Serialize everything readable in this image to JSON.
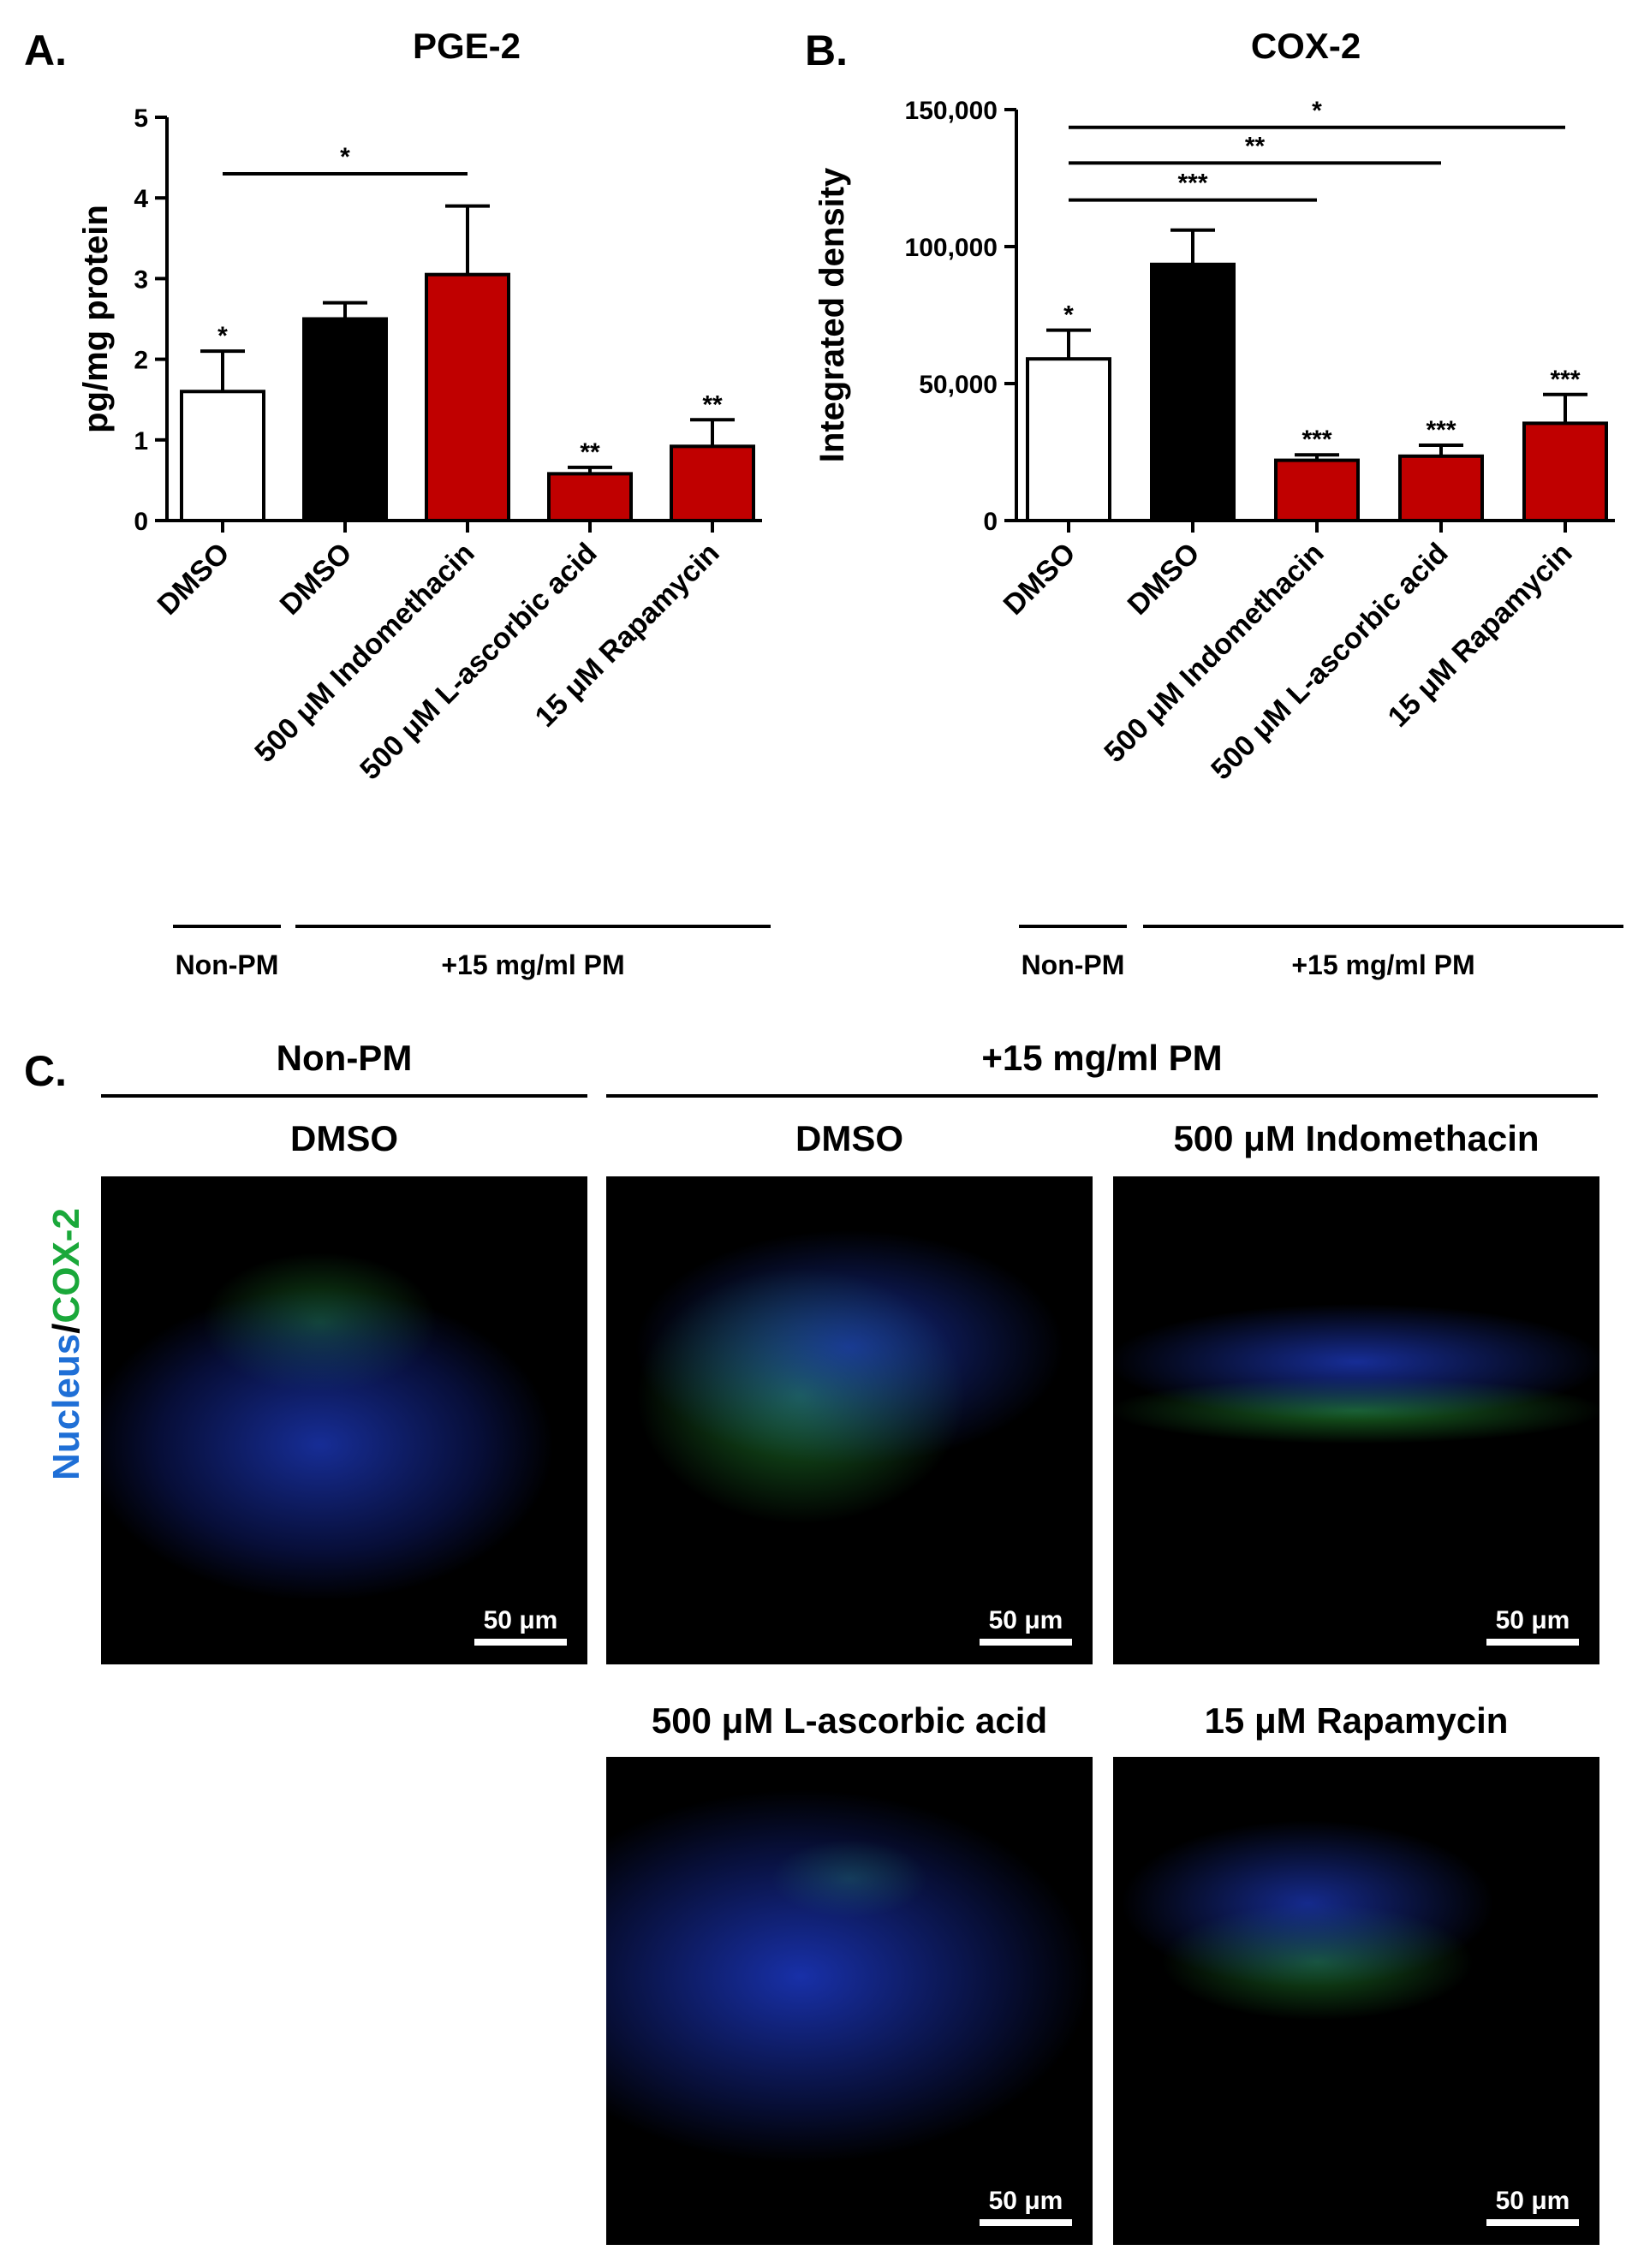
{
  "panels": {
    "a": {
      "letter": "A.",
      "title": "PGE-2"
    },
    "b": {
      "letter": "B.",
      "title": "COX-2"
    },
    "c": {
      "letter": "C."
    }
  },
  "chart_data": [
    {
      "type": "bar",
      "title": "PGE-2",
      "ylabel": "pg/mg protein",
      "xlabel": "",
      "ylim": [
        0,
        5
      ],
      "yticks": [
        "0",
        "1",
        "2",
        "3",
        "4",
        "5"
      ],
      "categories": [
        "DMSO",
        "DMSO",
        "500 μM Indomethacin",
        "500 μM L-ascorbic acid",
        "15 μM Rapamycin"
      ],
      "values": [
        1.6,
        2.5,
        3.05,
        0.58,
        0.92
      ],
      "errors": [
        0.5,
        0.2,
        0.85,
        0.08,
        0.33
      ],
      "bar_colors": [
        "#ffffff",
        "#000000",
        "#c00000",
        "#c00000",
        "#c00000"
      ],
      "bar_marks": [
        "*",
        "",
        "",
        "**",
        "**"
      ],
      "brackets": [
        {
          "from": 0,
          "to": 2,
          "y": 4.3,
          "label": "*"
        }
      ],
      "groups": [
        {
          "label": "Non-PM",
          "from": 0,
          "to": 0
        },
        {
          "label": "+15 mg/ml PM",
          "from": 1,
          "to": 4
        }
      ]
    },
    {
      "type": "bar",
      "title": "COX-2",
      "ylabel": "Integrated density",
      "xlabel": "",
      "ylim": [
        0,
        150000
      ],
      "yticks": [
        "0",
        "50,000",
        "100,000",
        "150,000"
      ],
      "categories": [
        "DMSO",
        "DMSO",
        "500 μM Indomethacin",
        "500 μM L-ascorbic acid",
        "15 μM Rapamycin"
      ],
      "values": [
        59000,
        93500,
        22000,
        23500,
        35500
      ],
      "errors": [
        10500,
        12500,
        2000,
        4000,
        10500
      ],
      "bar_colors": [
        "#ffffff",
        "#000000",
        "#c00000",
        "#c00000",
        "#c00000"
      ],
      "bar_marks": [
        "*",
        "",
        "***",
        "***",
        "***"
      ],
      "brackets": [
        {
          "from": 0,
          "to": 2,
          "y": 117000,
          "label": "***"
        },
        {
          "from": 0,
          "to": 3,
          "y": 130500,
          "label": "**"
        },
        {
          "from": 0,
          "to": 4,
          "y": 143500,
          "label": "*"
        }
      ],
      "groups": [
        {
          "label": "Non-PM",
          "from": 0,
          "to": 0
        },
        {
          "label": "+15 mg/ml PM",
          "from": 1,
          "to": 4
        }
      ]
    }
  ],
  "micrographs": {
    "ylabel_part1": "Nucleus",
    "ylabel_sep": "/",
    "ylabel_part2": "COX-2",
    "group_nonpm": "Non-PM",
    "group_pm": "+15 mg/ml PM",
    "scale_label": "50 μm",
    "images": [
      {
        "label": "DMSO"
      },
      {
        "label": "DMSO"
      },
      {
        "label": "500 μM Indomethacin"
      },
      {
        "label": "500 μM L-ascorbic acid"
      },
      {
        "label": "15 μM Rapamycin"
      }
    ]
  }
}
